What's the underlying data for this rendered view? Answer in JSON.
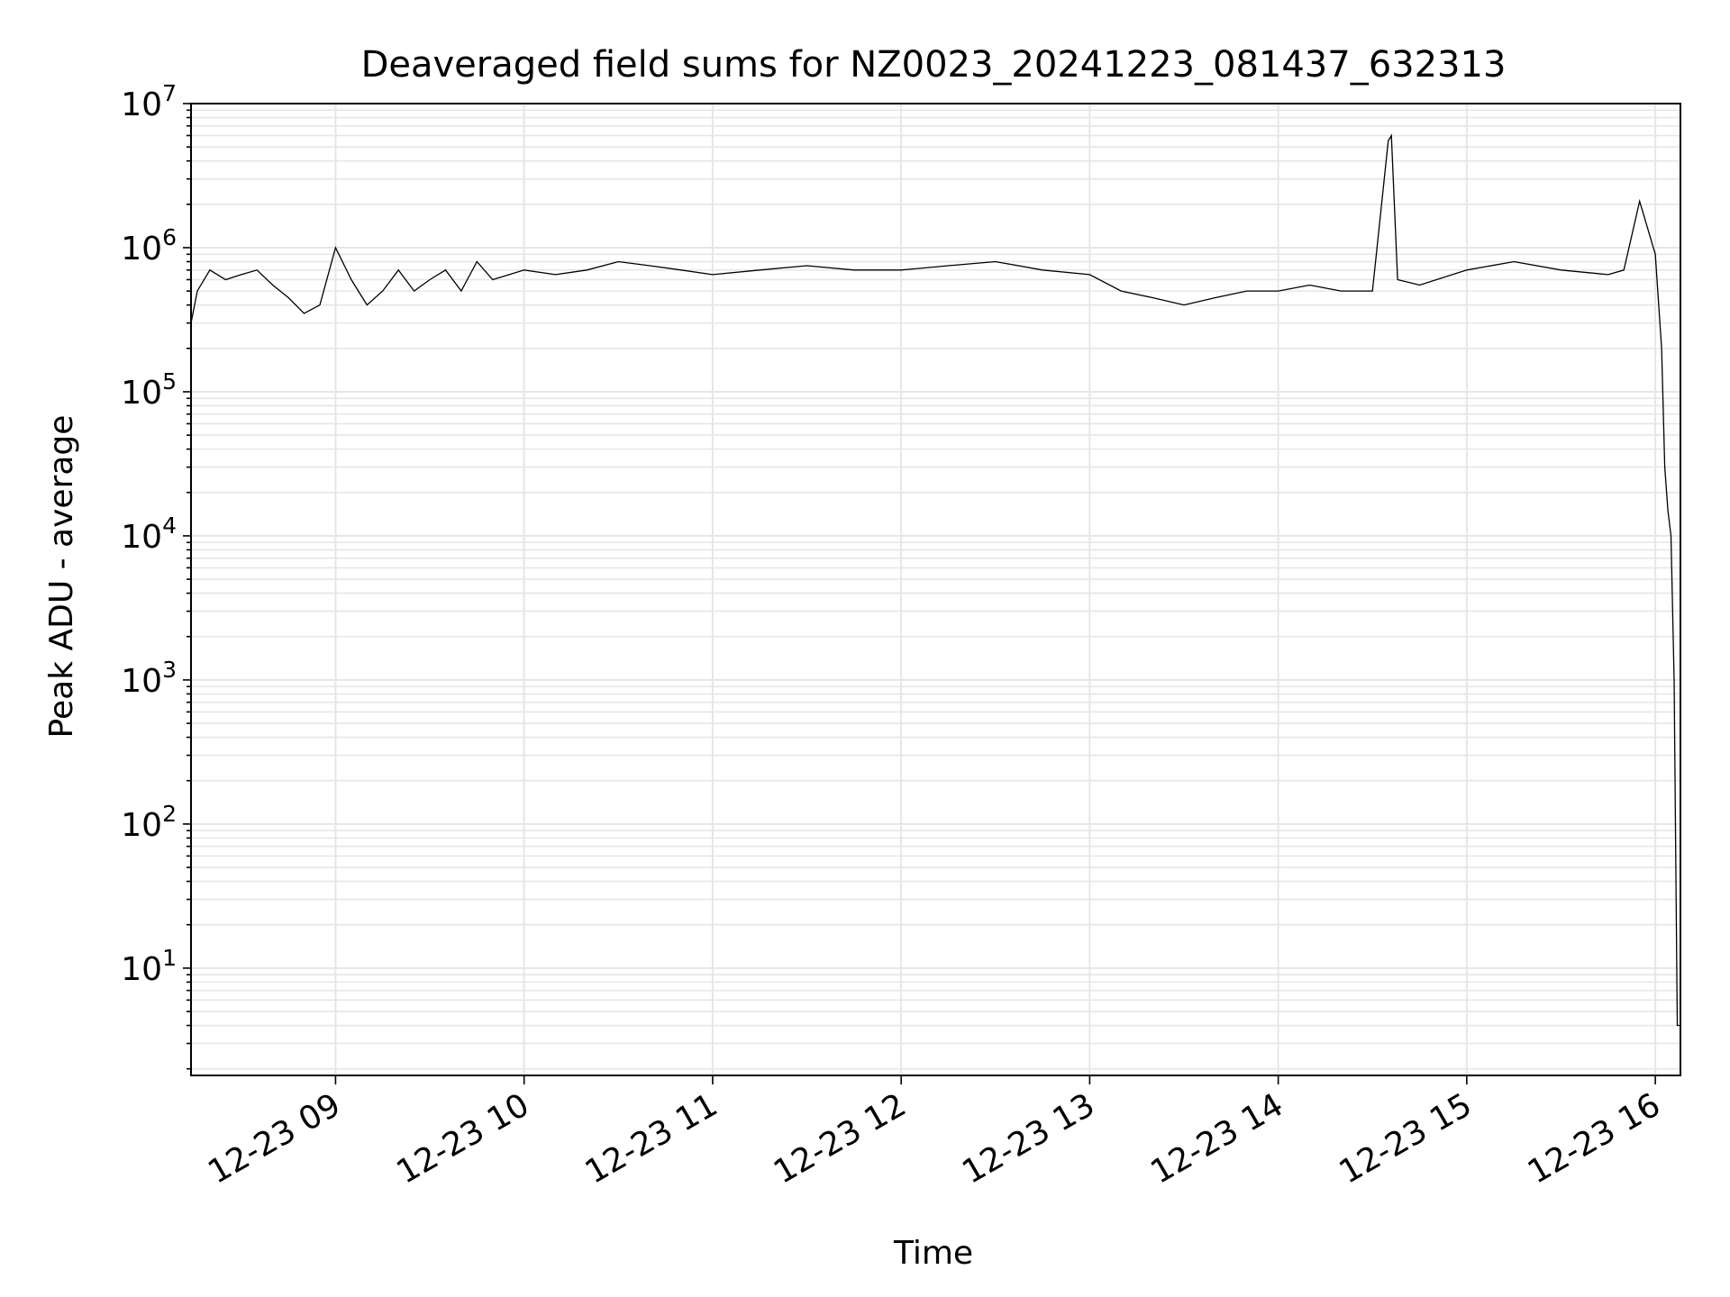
{
  "chart_data": {
    "type": "line",
    "title": "Deaveraged field sums for NZ0023_20241223_081437_632313",
    "xlabel": "Time",
    "ylabel": "Peak ADU - average",
    "y_scale": "log",
    "ylim": [
      1.8,
      10000000
    ],
    "xlim": [
      "2024-12-23 08:14",
      "2024-12-23 16:08"
    ],
    "x_ticks": [
      "2024-12-23 09:00",
      "2024-12-23 10:00",
      "2024-12-23 11:00",
      "2024-12-23 12:00",
      "2024-12-23 13:00",
      "2024-12-23 14:00",
      "2024-12-23 15:00",
      "2024-12-23 16:00"
    ],
    "x_tick_labels": [
      "12-23 09",
      "12-23 10",
      "12-23 11",
      "12-23 12",
      "12-23 13",
      "12-23 14",
      "12-23 15",
      "12-23 16"
    ],
    "y_ticks": [
      10,
      100,
      1000,
      10000,
      100000,
      1000000,
      10000000
    ],
    "y_tick_labels": [
      {
        "base": "10",
        "exp": "1"
      },
      {
        "base": "10",
        "exp": "2"
      },
      {
        "base": "10",
        "exp": "3"
      },
      {
        "base": "10",
        "exp": "4"
      },
      {
        "base": "10",
        "exp": "5"
      },
      {
        "base": "10",
        "exp": "6"
      },
      {
        "base": "10",
        "exp": "7"
      }
    ],
    "grid": true,
    "line_color": "#000000",
    "grid_color": "#e6e6e6",
    "series": [
      {
        "x": [
          "2024-12-23 08:14",
          "2024-12-23 08:16",
          "2024-12-23 08:20",
          "2024-12-23 08:25",
          "2024-12-23 08:30",
          "2024-12-23 08:35",
          "2024-12-23 08:40",
          "2024-12-23 08:45",
          "2024-12-23 08:50",
          "2024-12-23 08:55",
          "2024-12-23 09:00",
          "2024-12-23 09:05",
          "2024-12-23 09:10",
          "2024-12-23 09:15",
          "2024-12-23 09:20",
          "2024-12-23 09:25",
          "2024-12-23 09:30",
          "2024-12-23 09:35",
          "2024-12-23 09:40",
          "2024-12-23 09:45",
          "2024-12-23 09:50",
          "2024-12-23 10:00",
          "2024-12-23 10:10",
          "2024-12-23 10:20",
          "2024-12-23 10:30",
          "2024-12-23 10:40",
          "2024-12-23 10:50",
          "2024-12-23 11:00",
          "2024-12-23 11:15",
          "2024-12-23 11:30",
          "2024-12-23 11:45",
          "2024-12-23 12:00",
          "2024-12-23 12:15",
          "2024-12-23 12:30",
          "2024-12-23 12:45",
          "2024-12-23 13:00",
          "2024-12-23 13:10",
          "2024-12-23 13:20",
          "2024-12-23 13:30",
          "2024-12-23 13:40",
          "2024-12-23 13:50",
          "2024-12-23 14:00",
          "2024-12-23 14:10",
          "2024-12-23 14:20",
          "2024-12-23 14:30",
          "2024-12-23 14:35",
          "2024-12-23 14:36",
          "2024-12-23 14:38",
          "2024-12-23 14:45",
          "2024-12-23 15:00",
          "2024-12-23 15:15",
          "2024-12-23 15:30",
          "2024-12-23 15:45",
          "2024-12-23 15:50",
          "2024-12-23 15:55",
          "2024-12-23 16:00",
          "2024-12-23 16:02",
          "2024-12-23 16:03",
          "2024-12-23 16:04",
          "2024-12-23 16:05",
          "2024-12-23 16:06",
          "2024-12-23 16:07",
          "2024-12-23 16:08"
        ],
        "y": [
          300000,
          500000,
          700000,
          600000,
          650000,
          700000,
          550000,
          450000,
          350000,
          400000,
          1000000,
          600000,
          400000,
          500000,
          700000,
          500000,
          600000,
          700000,
          500000,
          800000,
          600000,
          700000,
          650000,
          700000,
          800000,
          750000,
          700000,
          650000,
          700000,
          750000,
          700000,
          700000,
          750000,
          800000,
          700000,
          650000,
          500000,
          450000,
          400000,
          450000,
          500000,
          500000,
          550000,
          500000,
          500000,
          5500000,
          6000000,
          600000,
          550000,
          700000,
          800000,
          700000,
          650000,
          700000,
          2100000,
          900000,
          200000,
          30000,
          15000,
          10000,
          1000,
          4,
          4
        ]
      }
    ]
  }
}
